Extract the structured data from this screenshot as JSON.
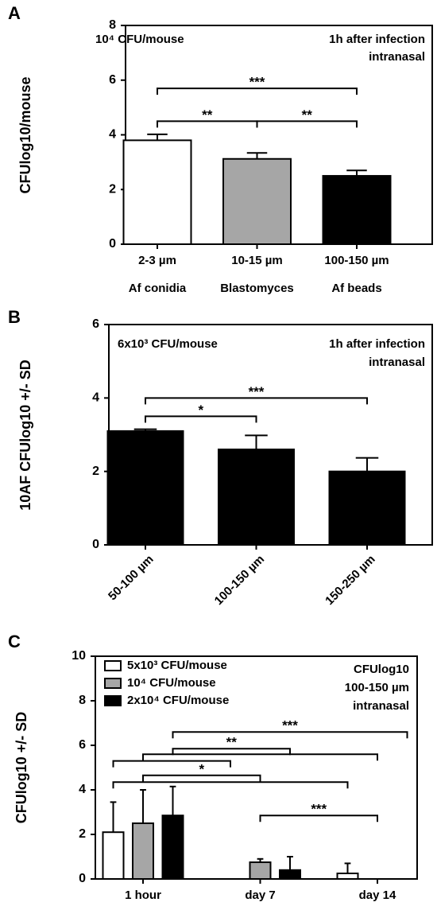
{
  "chart_data": [
    {
      "type": "bar",
      "panel_label": "A",
      "ylabel": "CFUlog10/mouse",
      "categories": [
        "2-3 µm",
        "10-15 µm",
        "100-150 µm"
      ],
      "category_notes": [
        "Af conidia",
        "Blastomyces",
        "Af beads"
      ],
      "values": [
        3.8,
        3.12,
        2.5
      ],
      "errors": [
        0.22,
        0.22,
        0.2
      ],
      "colors": [
        "#ffffff",
        "#a6a6a6",
        "#000000"
      ],
      "ylim": [
        0,
        8
      ],
      "yticks": [
        0,
        2,
        4,
        6,
        8
      ],
      "annotations": [
        "10⁴ CFU/mouse",
        "1h after infection",
        "intranasal"
      ],
      "brackets": [
        {
          "from": 0,
          "to": 2,
          "y": 5.7,
          "label": "***"
        },
        {
          "from": 0,
          "to": 1,
          "y": 4.5,
          "label": "**"
        },
        {
          "from": 1,
          "to": 2,
          "y": 4.5,
          "label": "**"
        }
      ]
    },
    {
      "type": "bar",
      "panel_label": "B",
      "ylabel": "10AF CFUlog10 +/- SD",
      "categories": [
        "50-100 µm",
        "100-150 µm",
        "150-250 µm"
      ],
      "xtick_rotation": -45,
      "values": [
        3.1,
        2.6,
        2.0
      ],
      "errors": [
        0.05,
        0.38,
        0.37
      ],
      "color": "#000000",
      "ylim": [
        0,
        6
      ],
      "yticks": [
        0,
        2,
        4,
        6
      ],
      "annotations": [
        "6x10³ CFU/mouse",
        "1h after infection",
        "intranasal"
      ],
      "brackets": [
        {
          "from": 0,
          "to": 2,
          "y": 4.0,
          "label": "***"
        },
        {
          "from": 0,
          "to": 1,
          "y": 3.5,
          "label": "*"
        }
      ]
    },
    {
      "type": "bar",
      "panel_label": "C",
      "ylabel": "CFUlog10 +/- SD",
      "categories": [
        "1 hour",
        "day 7",
        "day 14"
      ],
      "series": [
        {
          "name": "5x10³ CFU/mouse",
          "color": "#ffffff",
          "values": [
            2.1,
            0,
            0.25
          ],
          "errors": [
            1.35,
            0,
            0.45
          ]
        },
        {
          "name": "10⁴ CFU/mouse",
          "color": "#a6a6a6",
          "values": [
            2.5,
            0.75,
            0
          ],
          "errors": [
            1.5,
            0.15,
            0
          ]
        },
        {
          "name": "2x10⁴ CFU/mouse",
          "color": "#000000",
          "values": [
            2.85,
            0.4,
            0
          ],
          "errors": [
            1.3,
            0.6,
            0
          ]
        }
      ],
      "ylim": [
        0,
        10
      ],
      "yticks": [
        0,
        2,
        4,
        6,
        8,
        10
      ],
      "annotations": [
        "CFUlog10",
        "100-150 µm",
        "intranasal"
      ],
      "brackets": [
        {
          "from": [
            0,
            2
          ],
          "to": [
            2,
            2
          ],
          "y": 6.6,
          "label": "***"
        },
        {
          "from": [
            0,
            2
          ],
          "to": [
            1,
            2
          ],
          "y": 5.85,
          "label": "**"
        },
        {
          "from": [
            0,
            1
          ],
          "to": [
            2,
            1
          ],
          "y": 5.6
        },
        {
          "from": [
            0,
            0
          ],
          "to": [
            1,
            0
          ],
          "y": 5.3
        },
        {
          "from": [
            0,
            1
          ],
          "to": [
            1,
            1
          ],
          "y": 4.65,
          "label": "*"
        },
        {
          "from": [
            0,
            0
          ],
          "to": [
            2,
            0
          ],
          "y": 4.35
        },
        {
          "from": [
            1,
            1
          ],
          "to": [
            2,
            1
          ],
          "y": 2.85,
          "label": "***"
        }
      ]
    }
  ]
}
